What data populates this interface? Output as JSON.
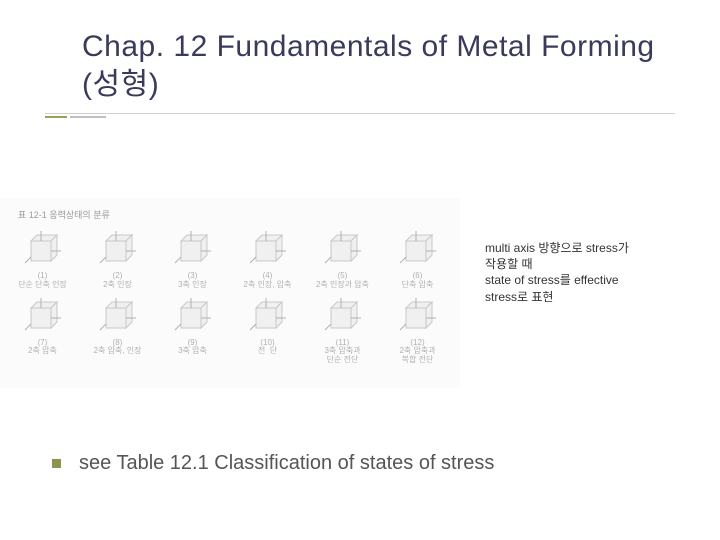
{
  "title": "Chap. 12 Fundamentals of Metal Forming (성형)",
  "figure": {
    "caption_prefix": "표 12-1  응력상태의 분류",
    "cube_stroke": "#c8c8c8",
    "cube_fill": "#f0f0f0",
    "arrow_stroke": "#b0b0b0",
    "row1": [
      {
        "num": "(1)",
        "label": "단순 단축 인장"
      },
      {
        "num": "(2)",
        "label": "2축 인장"
      },
      {
        "num": "(3)",
        "label": "3축 인장"
      },
      {
        "num": "(4)",
        "label": "2축 인장, 압축"
      },
      {
        "num": "(5)",
        "label": "2축 인장과 압축"
      },
      {
        "num": "(6)",
        "label": "단축 압축"
      }
    ],
    "row2": [
      {
        "num": "(7)",
        "label": "2축 압축"
      },
      {
        "num": "(8)",
        "label": "2축 압축, 인장"
      },
      {
        "num": "(9)",
        "label": "3축 압축"
      },
      {
        "num": "(10)",
        "label": "전  단"
      },
      {
        "num": "(11)",
        "label": "3축 압축과\n단순 전단"
      },
      {
        "num": "(12)",
        "label": "2축 압축과\n복합 전단"
      }
    ]
  },
  "annotation": {
    "line1": "multi axis 방향으로 stress가",
    "line2": "작용할 때",
    "line3": "state of stress를 effective",
    "line4": "stress로 표현"
  },
  "body_text": "see Table 12.1 Classification of states of stress",
  "colors": {
    "title": "#3a3a5a",
    "accent": "#8e934d",
    "thinline": "#d0d0d0",
    "text": "#555555"
  }
}
